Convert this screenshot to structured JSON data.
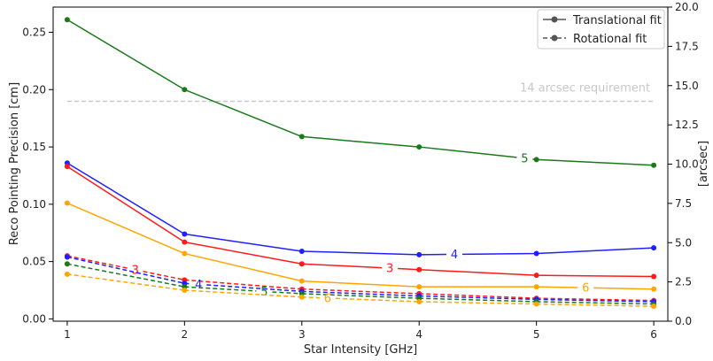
{
  "chart_data": {
    "type": "line",
    "xlabel": "Star Intensity [GHz]",
    "ylabel": "Reco Pointing Precision [cm]",
    "y2label": "[arcsec]",
    "x": [
      1,
      2,
      3,
      4,
      5,
      6
    ],
    "xticks": [
      "1",
      "2",
      "3",
      "4",
      "5",
      "6"
    ],
    "xlim": [
      0.88,
      6.12
    ],
    "ylim": [
      -0.002,
      0.272
    ],
    "yticks": [
      "0.00",
      "0.05",
      "0.10",
      "0.15",
      "0.20",
      "0.25"
    ],
    "y2lim": [
      0.0,
      20.0
    ],
    "y2ticks": [
      "0.0",
      "2.5",
      "5.0",
      "7.5",
      "10.0",
      "12.5",
      "15.0",
      "17.5",
      "20.0"
    ],
    "legend": {
      "placement": "top-right",
      "entries": [
        {
          "label": "Translational fit",
          "dash": "solid"
        },
        {
          "label": "Rotational fit",
          "dash": "dashed"
        }
      ]
    },
    "requirement": {
      "label": "14 arcsec requirement",
      "value_arcsec": 14.0,
      "color": "#c8c8c8"
    },
    "series": [
      {
        "name": "5",
        "fit": "translational",
        "color": "#1a7a1a",
        "dash": "solid",
        "values": [
          0.261,
          0.2,
          0.159,
          0.15,
          0.139,
          0.134
        ],
        "label_at_x": 4.9
      },
      {
        "name": "4",
        "fit": "translational",
        "color": "#1f1fff",
        "dash": "solid",
        "values": [
          0.136,
          0.074,
          0.059,
          0.056,
          0.057,
          0.062
        ],
        "label_at_x": 4.3
      },
      {
        "name": "3",
        "fit": "translational",
        "color": "#ff1a1a",
        "dash": "solid",
        "values": [
          0.133,
          0.067,
          0.048,
          0.043,
          0.038,
          0.037
        ],
        "label_at_x": 3.75
      },
      {
        "name": "6",
        "fit": "translational",
        "color": "#ffa500",
        "dash": "solid",
        "values": [
          0.101,
          0.057,
          0.033,
          0.028,
          0.028,
          0.026
        ],
        "label_at_x": 5.42
      },
      {
        "name": "3",
        "fit": "rotational",
        "color": "#ff1a1a",
        "dash": "dashed",
        "values": [
          0.055,
          0.034,
          0.026,
          0.022,
          0.018,
          0.016
        ],
        "label_at_x": 1.58
      },
      {
        "name": "4",
        "fit": "rotational",
        "color": "#1f1fff",
        "dash": "dashed",
        "values": [
          0.054,
          0.031,
          0.024,
          0.02,
          0.017,
          0.015
        ],
        "label_at_x": 2.12
      },
      {
        "name": "5",
        "fit": "rotational",
        "color": "#1a7a1a",
        "dash": "dashed",
        "values": [
          0.048,
          0.028,
          0.022,
          0.018,
          0.015,
          0.013
        ],
        "label_at_x": 2.68
      },
      {
        "name": "6",
        "fit": "rotational",
        "color": "#ffa500",
        "dash": "dashed",
        "values": [
          0.039,
          0.025,
          0.019,
          0.015,
          0.013,
          0.011
        ],
        "label_at_x": 3.22
      }
    ]
  }
}
